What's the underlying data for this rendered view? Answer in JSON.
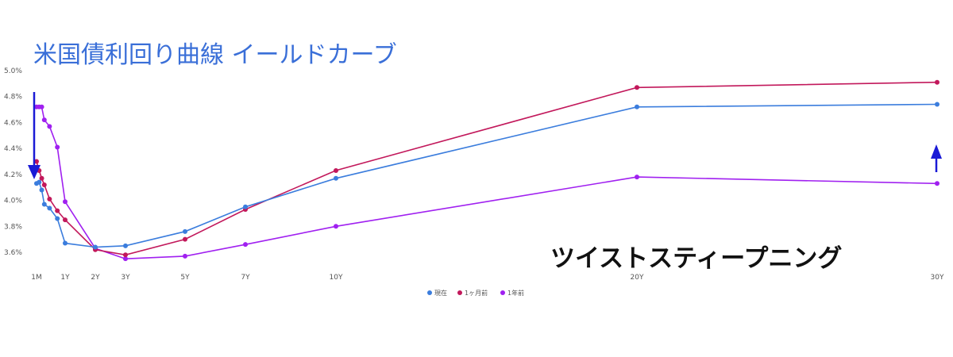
{
  "chart_data": {
    "type": "line",
    "title": "米国債利回り曲線 イールドカーブ",
    "annotation": "ツイストスティープニング",
    "xlabel": "",
    "ylabel": "",
    "ylim": [
      3.4,
      5.0
    ],
    "yticks": [
      "5.0%",
      "4.8%",
      "4.6%",
      "4.4%",
      "4.2%",
      "4.0%",
      "3.8%",
      "3.6%"
    ],
    "ytick_values": [
      5.0,
      4.8,
      4.6,
      4.4,
      4.2,
      4.0,
      3.8,
      3.6
    ],
    "x_labels": [
      "1M",
      "1Y",
      "2Y",
      "3Y",
      "5Y",
      "7Y",
      "10Y",
      "20Y",
      "30Y"
    ],
    "x_label_years": [
      0.0833,
      1,
      2,
      3,
      5,
      7,
      10,
      20,
      30
    ],
    "x": [
      0.0833,
      0.1667,
      0.25,
      0.3333,
      0.5,
      0.75,
      1,
      2,
      3,
      5,
      7,
      10,
      20,
      30
    ],
    "legend_position": "bottom",
    "grid": false,
    "series": [
      {
        "name": "現在",
        "color": "#3b7ddd",
        "values": [
          4.13,
          4.14,
          4.08,
          3.97,
          3.94,
          3.86,
          3.67,
          3.64,
          3.65,
          3.76,
          3.95,
          4.17,
          4.72,
          4.74
        ]
      },
      {
        "name": "1ヶ月前",
        "color": "#c2185b",
        "values": [
          4.3,
          4.23,
          4.17,
          4.12,
          4.01,
          3.92,
          3.85,
          3.62,
          3.58,
          3.7,
          3.93,
          4.23,
          4.87,
          4.91
        ]
      },
      {
        "name": "1年前",
        "color": "#a020f0",
        "values": [
          4.72,
          4.72,
          4.72,
          4.62,
          4.57,
          4.41,
          3.99,
          3.63,
          3.55,
          3.57,
          3.66,
          3.8,
          4.18,
          4.13
        ]
      }
    ]
  }
}
